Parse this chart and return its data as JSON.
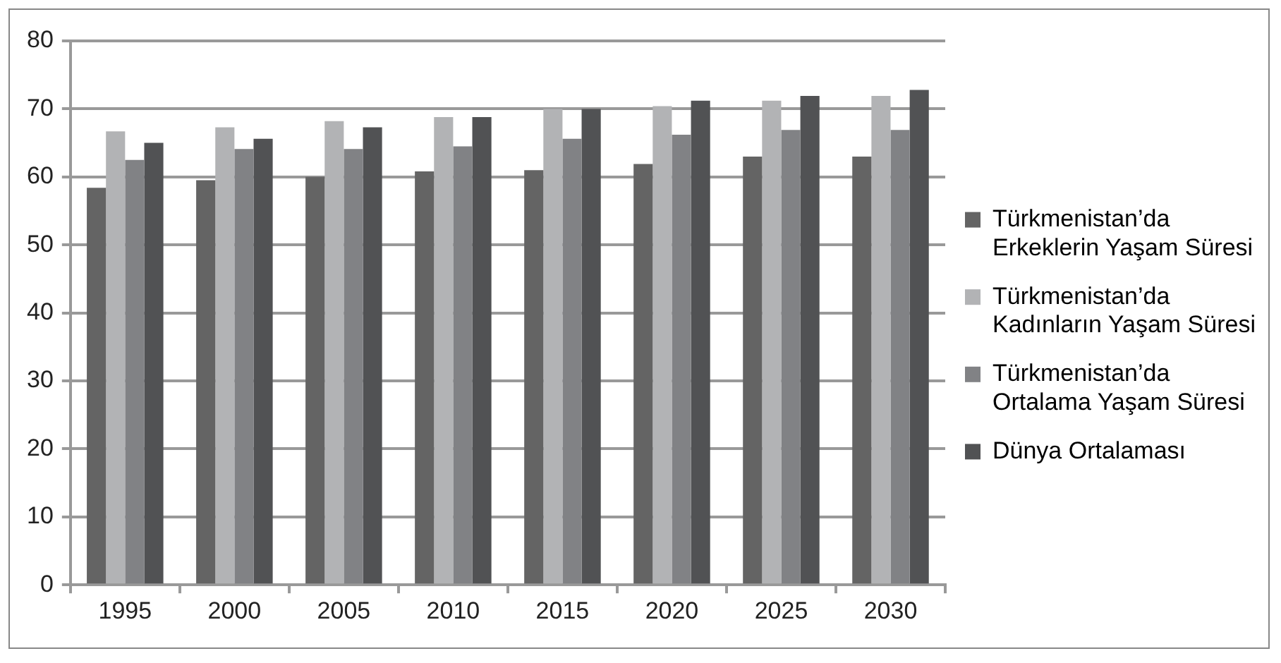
{
  "chart_data": {
    "type": "bar",
    "categories": [
      "1995",
      "2000",
      "2005",
      "2010",
      "2015",
      "2020",
      "2025",
      "2030"
    ],
    "series": [
      {
        "name": "Türkmenistan’da Erkeklerin Yaşam Süresi",
        "color": "#646464",
        "values": [
          58.4,
          59.5,
          60.0,
          60.8,
          61.0,
          61.9,
          63.0,
          63.0
        ]
      },
      {
        "name": "Türkmenistan’da Kadınların Yaşam Süresi",
        "color": "#b2b3b5",
        "values": [
          66.7,
          67.3,
          68.2,
          68.8,
          70.0,
          70.4,
          71.2,
          71.9
        ]
      },
      {
        "name": "Türkmenistan’da Ortalama Yaşam Süresi",
        "color": "#818285",
        "values": [
          62.5,
          64.1,
          64.1,
          64.5,
          65.6,
          66.2,
          66.9,
          66.9
        ]
      },
      {
        "name": "Dünya Ortalaması",
        "color": "#515254",
        "values": [
          65.0,
          65.6,
          67.3,
          68.8,
          70.0,
          71.2,
          71.9,
          72.8
        ]
      }
    ],
    "ylim": [
      0,
      80
    ],
    "yticks": [
      0,
      10,
      20,
      30,
      40,
      50,
      60,
      70,
      80
    ],
    "grid": "y",
    "legend": "right"
  }
}
